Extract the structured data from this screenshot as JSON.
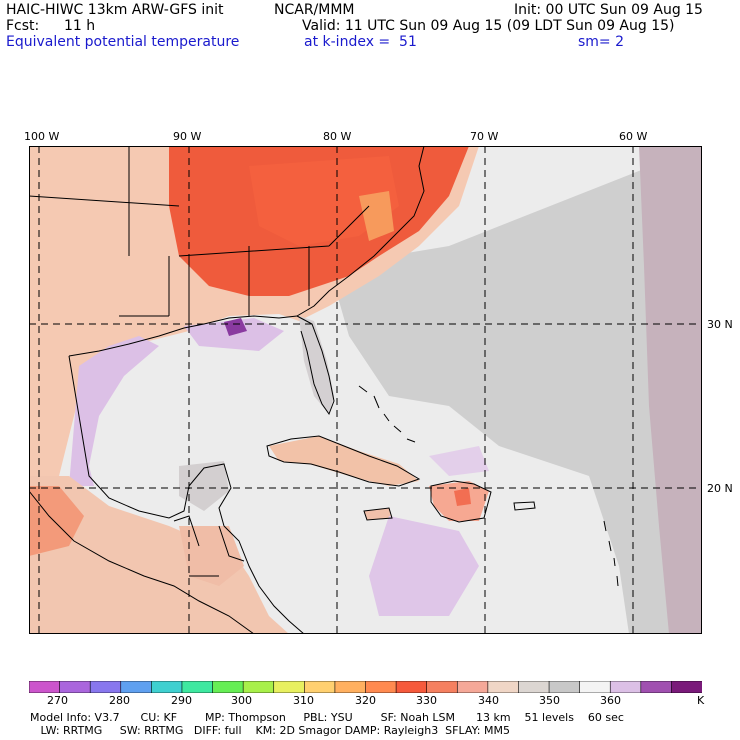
{
  "header": {
    "model_line": "HAIC-HIWC 13km ARW-GFS init",
    "org": "NCAR/MMM",
    "init": "Init: 00 UTC Sun 09 Aug 15",
    "fcst_label": "Fcst:",
    "fcst_value": "11 h",
    "valid": "Valid: 11 UTC Sun 09 Aug 15 (09 LDT Sun 09 Aug 15)",
    "field": "Equivalent potential temperature",
    "level": "at k-index =  51",
    "smooth": "sm= 2"
  },
  "map": {
    "lon_labels": [
      "100 W",
      "90 W",
      "80 W",
      "70 W",
      "60 W"
    ],
    "lat_labels": [
      "30 N",
      "20 N"
    ],
    "colors": {
      "sea": "#ececec",
      "land_warm": "#f5c7b0",
      "land_hot": "#ee5a3c",
      "grey_band": "#c8c8c8",
      "lavender": "#dcc0e6",
      "purple": "#8a3aa0",
      "mauve": "#c2a8b6",
      "coast": "#000000",
      "grid": "#000000"
    }
  },
  "colorbar": {
    "ticks": [
      "270",
      "280",
      "290",
      "300",
      "310",
      "320",
      "330",
      "340",
      "350",
      "360"
    ],
    "unit": "K",
    "colors": [
      "#cc55cc",
      "#aa66dd",
      "#8877ee",
      "#5fa0f0",
      "#3fd0d0",
      "#3ee8a0",
      "#66ee55",
      "#a8f04a",
      "#e8f060",
      "#ffd070",
      "#ffb060",
      "#ff8a50",
      "#f65a3c",
      "#f58060",
      "#f5a898",
      "#f0d6c6",
      "#dcd6d2",
      "#c8c8c8",
      "#f4f4f4",
      "#dcc0e6",
      "#a050b0",
      "#7a1a7a"
    ]
  },
  "footer": {
    "line1": "Model Info: V3.7      CU: KF        MP: Thompson     PBL: YSU        SF: Noah LSM      13 km    51 levels    60 sec",
    "line2": "   LW: RRTMG     SW: RRTMG   DIFF: full    KM: 2D Smagor DAMP: Rayleigh3  SFLAY: MM5"
  }
}
